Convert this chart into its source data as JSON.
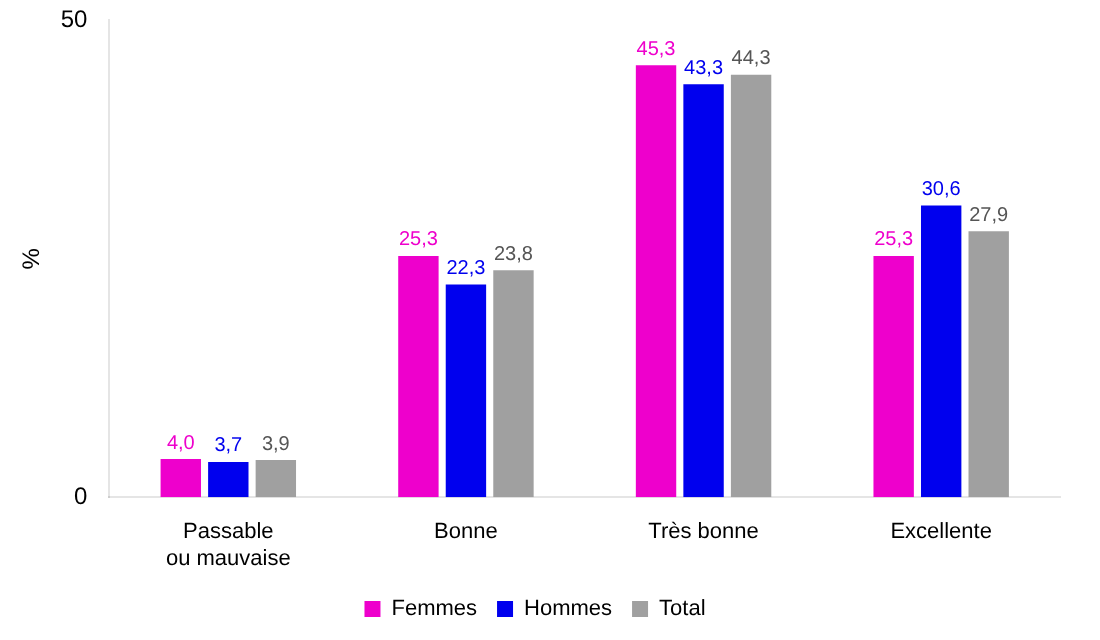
{
  "chart_data": {
    "type": "bar",
    "ylabel": "%",
    "categories": [
      "Passable ou mauvaise",
      "Bonne",
      "Très bonne",
      "Excellente"
    ],
    "series": [
      {
        "name": "Femmes",
        "color": "#ee00cc",
        "values": [
          4.0,
          25.3,
          45.3,
          25.3
        ],
        "value_labels": [
          "4,0",
          "25,3",
          "45,3",
          "25,3"
        ]
      },
      {
        "name": "Hommes",
        "color": "#0000ee",
        "values": [
          3.7,
          22.3,
          43.3,
          30.6
        ],
        "value_labels": [
          "3,7",
          "22,3",
          "43,3",
          "30,6"
        ]
      },
      {
        "name": "Total",
        "color": "#a0a0a0",
        "values": [
          3.9,
          23.8,
          44.3,
          27.9
        ],
        "value_labels": [
          "3,9",
          "23,8",
          "44,3",
          "27,9"
        ]
      }
    ],
    "ylim": [
      0,
      50
    ],
    "yticks": [
      0,
      50
    ],
    "grid": false,
    "legend": "bottom"
  }
}
